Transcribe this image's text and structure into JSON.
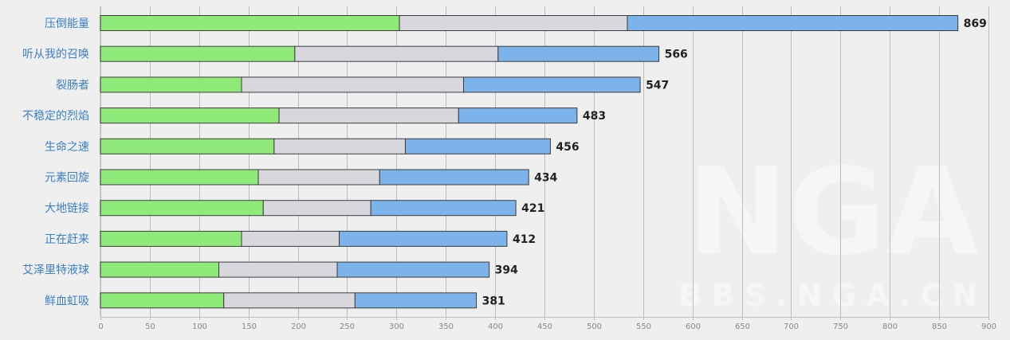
{
  "colors": {
    "background": "#efefef",
    "plot_background": "#efefef",
    "gridline": "#bdbdbd",
    "segment1": "#90ea7a",
    "segment2": "#d8d7dd",
    "segment3": "#7cb3ea",
    "bar_stroke": "#3c3c3c",
    "category_label": "#3a7fc7",
    "total_label": "#222222",
    "tick_label": "#888888"
  },
  "watermark": {
    "logo_text": "NGA",
    "url_text": "BBS.NGA.CN"
  },
  "chart_data": {
    "type": "bar",
    "orientation": "horizontal",
    "stacked": true,
    "title": "",
    "xlabel": "",
    "ylabel": "",
    "xlim": [
      0,
      900
    ],
    "x_ticks": [
      0,
      50,
      100,
      150,
      200,
      250,
      300,
      350,
      400,
      450,
      500,
      550,
      600,
      650,
      700,
      750,
      800,
      850,
      900
    ],
    "grid": true,
    "legend": "none",
    "categories": [
      "压倒能量",
      "听从我的召唤",
      "裂肠者",
      "不稳定的烈焰",
      "生命之速",
      "元素回旋",
      "大地链接",
      "正在赶来",
      "艾泽里特液球",
      "鲜血虹吸"
    ],
    "series": [
      {
        "color_key": "segment1",
        "values": [
          303,
          197,
          143,
          181,
          176,
          160,
          165,
          143,
          120,
          125
        ]
      },
      {
        "color_key": "segment2",
        "values": [
          231,
          206,
          225,
          182,
          133,
          123,
          109,
          99,
          120,
          133
        ]
      },
      {
        "color_key": "segment3",
        "values": [
          335,
          163,
          179,
          120,
          147,
          151,
          147,
          170,
          154,
          123
        ]
      }
    ],
    "totals": [
      869,
      566,
      547,
      483,
      456,
      434,
      421,
      412,
      394,
      381
    ]
  }
}
